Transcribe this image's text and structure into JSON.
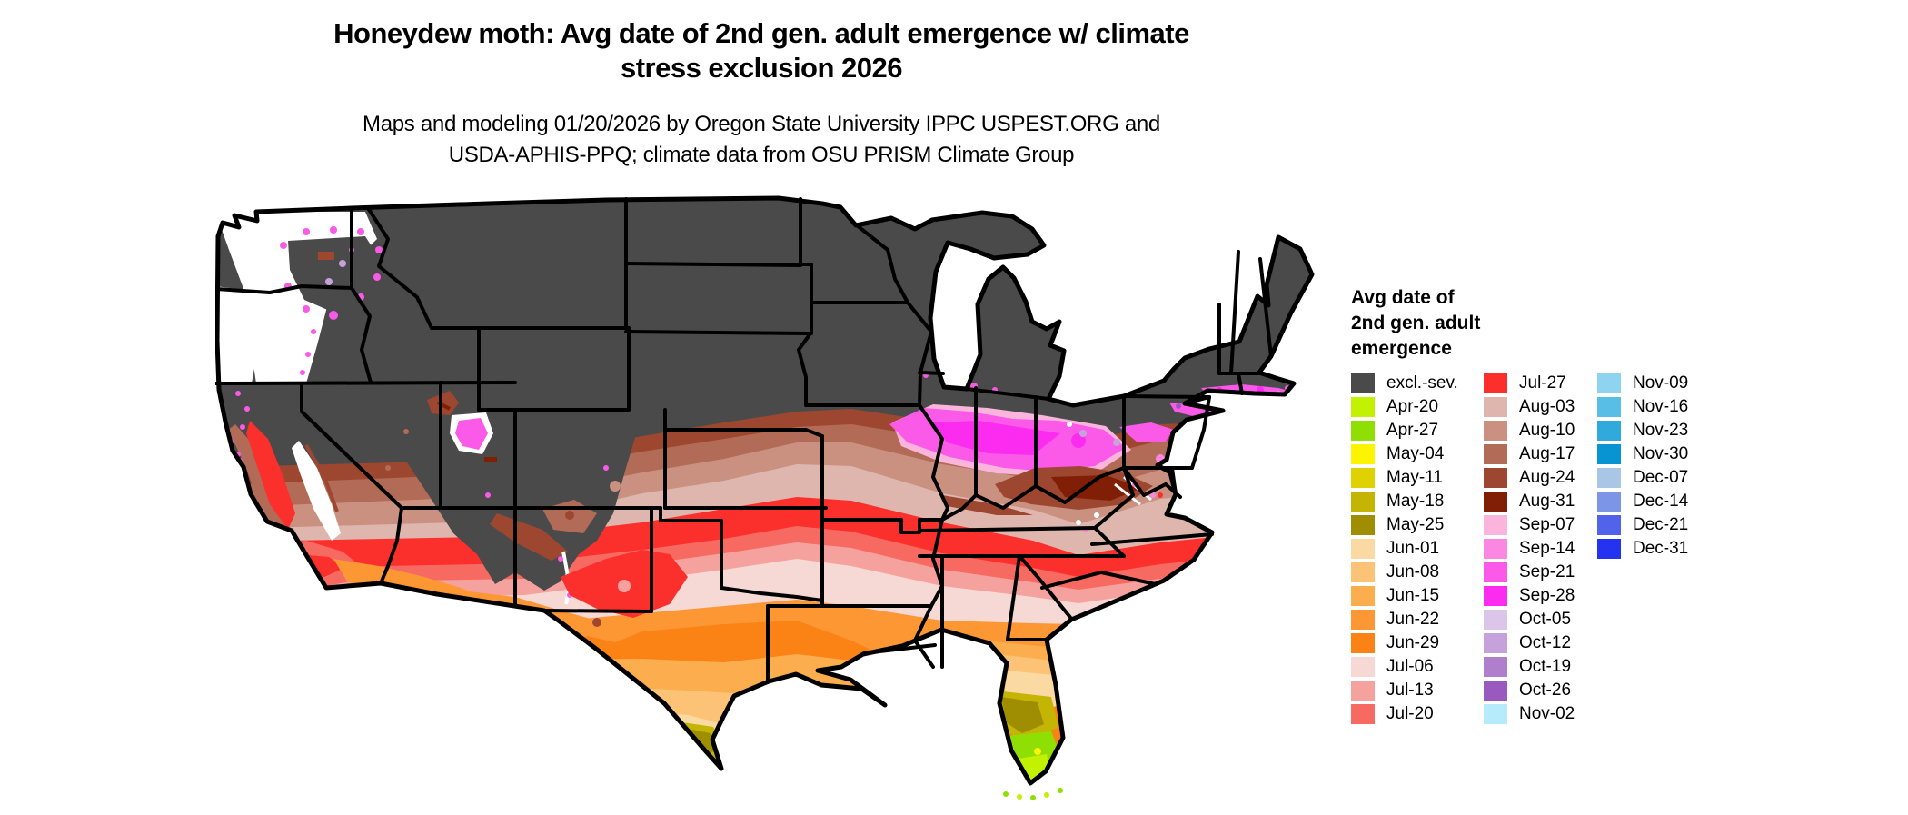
{
  "title": {
    "line1": "Honeydew moth: Avg date of 2nd gen. adult emergence w/ climate",
    "line2": "stress exclusion 2026"
  },
  "subtitle": {
    "line1": "Maps and modeling 01/20/2026 by Oregon State University IPPC USPEST.ORG and",
    "line2": "USDA-APHIS-PPQ; climate data from OSU PRISM Climate Group"
  },
  "legend": {
    "title_lines": [
      "Avg date of",
      "2nd gen. adult",
      "emergence"
    ],
    "columns": [
      [
        {
          "label": "excl.-sev.",
          "color": "#4a4a4a"
        },
        {
          "label": "Apr-20",
          "color": "#c2f102"
        },
        {
          "label": "Apr-27",
          "color": "#8fdf04"
        },
        {
          "label": "May-04",
          "color": "#fdf403"
        },
        {
          "label": "May-11",
          "color": "#dfd203"
        },
        {
          "label": "May-18",
          "color": "#c4b403"
        },
        {
          "label": "May-25",
          "color": "#9f8d02"
        },
        {
          "label": "Jun-01",
          "color": "#fbd9a2"
        },
        {
          "label": "Jun-08",
          "color": "#fcc377"
        },
        {
          "label": "Jun-15",
          "color": "#fcad4e"
        },
        {
          "label": "Jun-22",
          "color": "#fc9733"
        },
        {
          "label": "Jun-29",
          "color": "#fb8214"
        },
        {
          "label": "Jul-06",
          "color": "#f6d8d5"
        },
        {
          "label": "Jul-13",
          "color": "#f5a29e"
        },
        {
          "label": "Jul-20",
          "color": "#f66a62"
        }
      ],
      [
        {
          "label": "Jul-27",
          "color": "#fb2f2b"
        },
        {
          "label": "Aug-03",
          "color": "#dfb6ae"
        },
        {
          "label": "Aug-10",
          "color": "#ca9181"
        },
        {
          "label": "Aug-17",
          "color": "#b26b56"
        },
        {
          "label": "Aug-24",
          "color": "#9d4731"
        },
        {
          "label": "Aug-31",
          "color": "#811f06"
        },
        {
          "label": "Sep-07",
          "color": "#fbb5dd"
        },
        {
          "label": "Sep-14",
          "color": "#fb87e3"
        },
        {
          "label": "Sep-21",
          "color": "#fb59e8"
        },
        {
          "label": "Sep-28",
          "color": "#fb2bf0"
        },
        {
          "label": "Oct-05",
          "color": "#dbc6ea"
        },
        {
          "label": "Oct-12",
          "color": "#c5a2db"
        },
        {
          "label": "Oct-19",
          "color": "#af7ecd"
        },
        {
          "label": "Oct-26",
          "color": "#9959be"
        },
        {
          "label": "Nov-02",
          "color": "#b5ebfb"
        }
      ],
      [
        {
          "label": "Nov-09",
          "color": "#8ed4f0"
        },
        {
          "label": "Nov-16",
          "color": "#59bee6"
        },
        {
          "label": "Nov-23",
          "color": "#30aadd"
        },
        {
          "label": "Nov-30",
          "color": "#0894d2"
        },
        {
          "label": "Dec-07",
          "color": "#a9c6e6"
        },
        {
          "label": "Dec-14",
          "color": "#7c95e6"
        },
        {
          "label": "Dec-21",
          "color": "#5063ea"
        },
        {
          "label": "Dec-31",
          "color": "#2433f0"
        }
      ]
    ]
  },
  "map": {
    "type": "us-conus-choropleth",
    "excluded_class_label": "excl.-sev.",
    "excluded_color": "#4a4a4a",
    "background_color": "#ffffff",
    "border_color": "#000000"
  }
}
